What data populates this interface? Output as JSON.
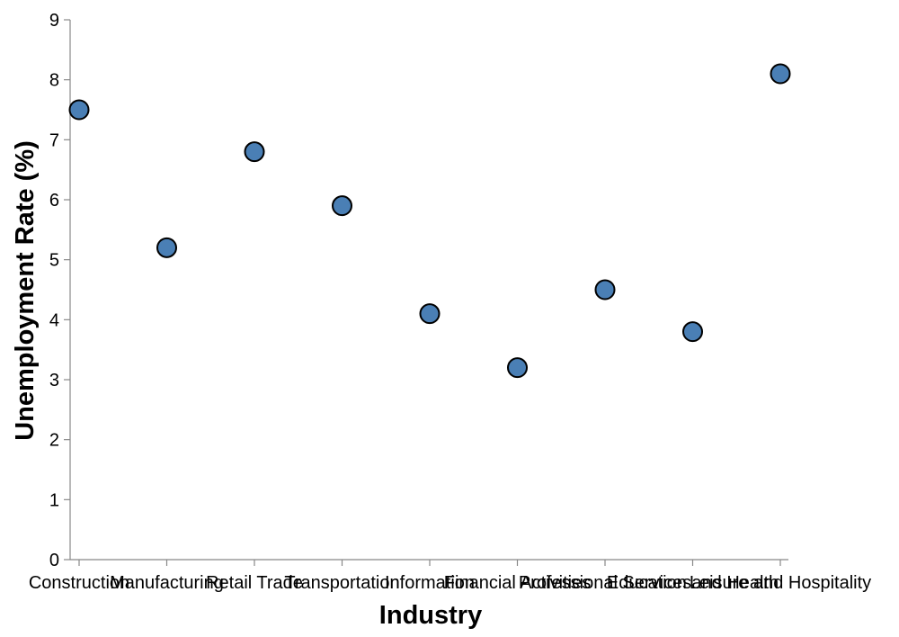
{
  "chart_data": {
    "type": "scatter",
    "categories": [
      "Construction",
      "Manufacturing",
      "Retail Trade",
      "Transportation",
      "Information",
      "Financial Activities",
      "Professional Services",
      "Education and Health",
      "Leisure and Hospitality"
    ],
    "values": [
      7.5,
      5.2,
      6.8,
      5.9,
      4.1,
      3.2,
      4.5,
      3.8,
      8.1
    ],
    "xlabel": "Industry",
    "ylabel": "Unemployment Rate (%)",
    "ylim": [
      0,
      9
    ],
    "yticks": [
      0,
      1,
      2,
      3,
      4,
      5,
      6,
      7,
      8,
      9
    ],
    "grid": false,
    "point_color": "#4a7fb5",
    "point_stroke": "#000000"
  }
}
